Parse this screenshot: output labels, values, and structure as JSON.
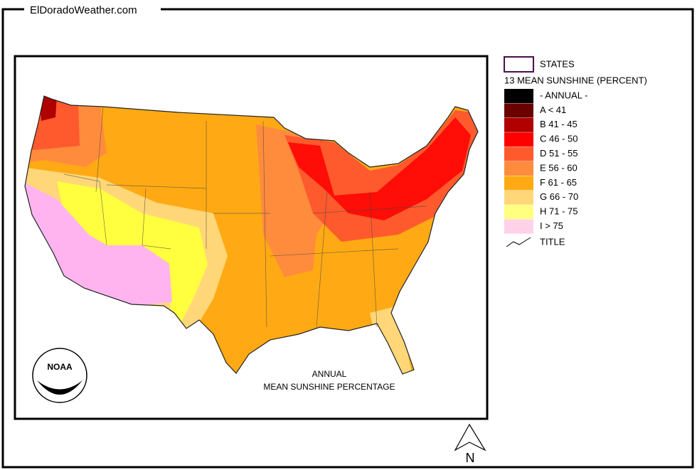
{
  "header": {
    "title": "ElDoradoWeather.com"
  },
  "map": {
    "caption_line1": "ANNUAL",
    "caption_line2": "MEAN SUNSHINE PERCENTAGE",
    "logo_text": "NOAA",
    "north": "N"
  },
  "legend": {
    "states": "STATES",
    "heading": "13 MEAN SUNSHINE (PERCENT)",
    "classes": [
      {
        "label": "- ANNUAL -",
        "color": "#000000"
      },
      {
        "label": "A < 41",
        "color": "#6b0000"
      },
      {
        "label": "B 41 - 45",
        "color": "#b00000"
      },
      {
        "label": "C 46 - 50",
        "color": "#ff0000"
      },
      {
        "label": "D 51 - 55",
        "color": "#ff5a2d"
      },
      {
        "label": "E 56 - 60",
        "color": "#ff8c3c"
      },
      {
        "label": "F 61 - 65",
        "color": "#ffaa14"
      },
      {
        "label": "G 66 - 70",
        "color": "#ffd778"
      },
      {
        "label": "H 71 - 75",
        "color": "#ffff80"
      },
      {
        "label": "I > 75",
        "color": "#ffd2ea"
      }
    ],
    "title_item": "TITLE"
  }
}
